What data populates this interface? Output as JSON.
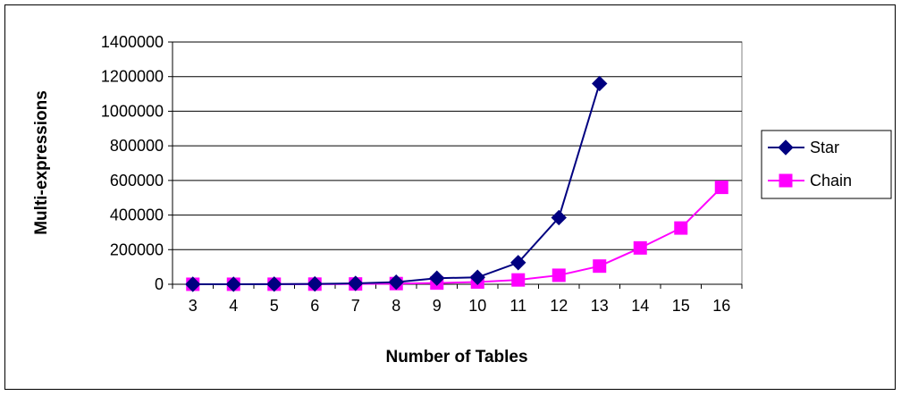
{
  "chart_data": {
    "type": "line",
    "xlabel": "Number of Tables",
    "ylabel": "Multi-expressions",
    "categories": [
      "3",
      "4",
      "5",
      "6",
      "7",
      "8",
      "9",
      "10",
      "11",
      "12",
      "13",
      "14",
      "15",
      "16"
    ],
    "ylim": [
      0,
      1400000
    ],
    "yticks": [
      "0",
      "200000",
      "400000",
      "600000",
      "800000",
      "1000000",
      "1200000",
      "1400000"
    ],
    "grid": true,
    "legend_position": "right",
    "series": [
      {
        "name": "Star",
        "color": "#000080",
        "marker": "diamond",
        "values": [
          100,
          300,
          800,
          2000,
          5000,
          12000,
          35000,
          40000,
          125000,
          385000,
          1160000,
          null,
          null,
          null
        ]
      },
      {
        "name": "Chain",
        "color": "#ff00ff",
        "marker": "square",
        "values": [
          50,
          150,
          400,
          900,
          1800,
          4000,
          7000,
          13000,
          25000,
          52000,
          105000,
          210000,
          325000,
          560000
        ]
      }
    ]
  }
}
